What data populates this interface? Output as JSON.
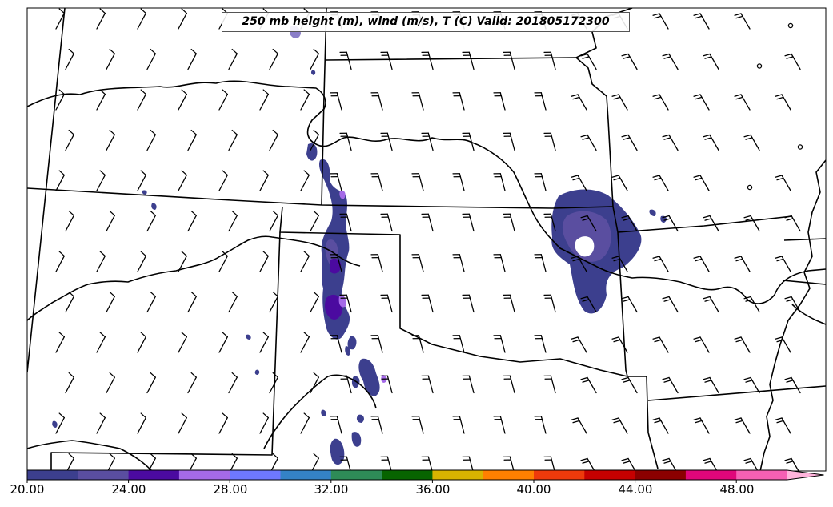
{
  "title": "250 mb height (m), wind (m/s), T (C) Valid: 201805172300",
  "colorbar": {
    "tick_labels": [
      "20.00",
      "24.00",
      "28.00",
      "32.00",
      "36.00",
      "40.00",
      "44.00",
      "48.00"
    ],
    "colors": [
      "#3c3f8e",
      "#5a4ea0",
      "#4b0aa0",
      "#a56ae8",
      "#6e78ff",
      "#3482c6",
      "#2e8b57",
      "#076400",
      "#d8b400",
      "#ff8000",
      "#ee3a0b",
      "#c60000",
      "#8b0000",
      "#e0067a",
      "#f560b4",
      "#ffb4dc"
    ],
    "extend": "max"
  },
  "colors": {
    "fill_low": "#3c3f8e",
    "fill_mid": "#5a4ea0",
    "fill_high": "#4b0aa0",
    "fill_light": "#a56ae8",
    "boundary": "#000000"
  },
  "wind_barbs": {
    "icon": "wind-barb-icon",
    "calm_icon": "calm-circle-icon"
  }
}
